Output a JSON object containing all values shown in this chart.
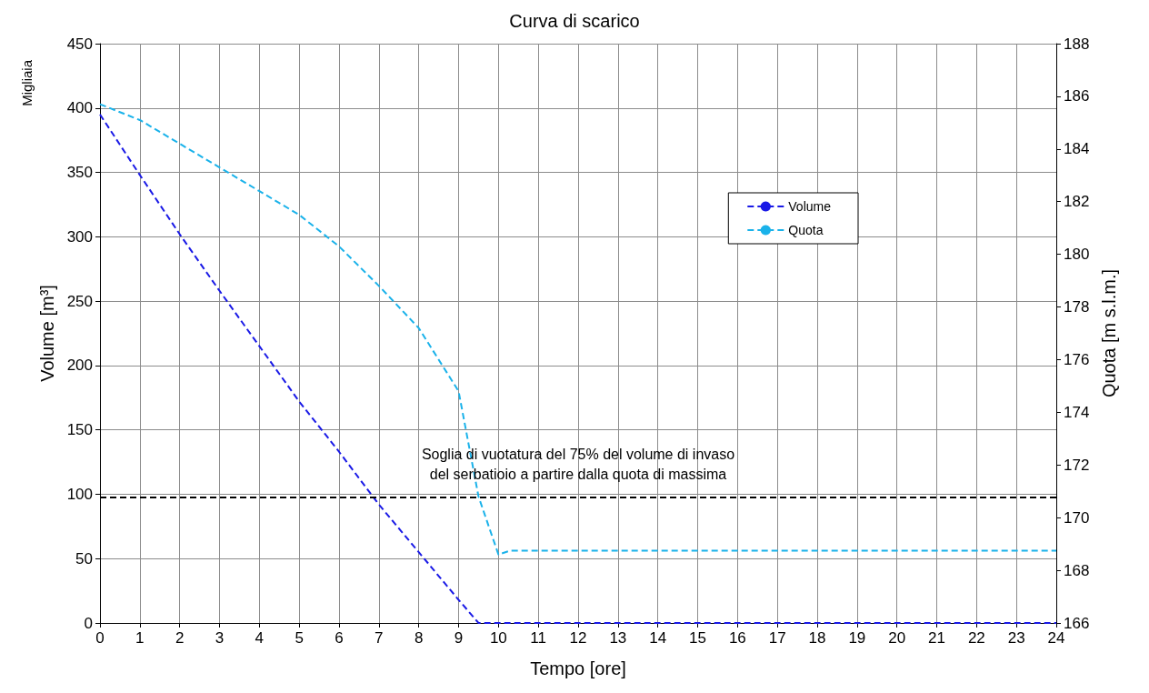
{
  "chart_data": {
    "type": "line",
    "title": "Curva di scarico",
    "xlabel": "Tempo [ore]",
    "ylabel": "Volume [m³]",
    "y2label": "Quota [m s.l.m.]",
    "annotations": [
      "Migliaia"
    ],
    "x": [
      0,
      1,
      2,
      3,
      4,
      5,
      6,
      7,
      8,
      9,
      9.5,
      10,
      10.3,
      11,
      12,
      13,
      14,
      15,
      16,
      17,
      18,
      19,
      20,
      21,
      22,
      23,
      24
    ],
    "series": [
      {
        "name": "Volume",
        "color": "#1a1ae6",
        "line_style": "dashed",
        "values": [
          395,
          348,
          302,
          258,
          215,
          172,
          133,
          92,
          55,
          18,
          0,
          0,
          0,
          0,
          0,
          0,
          0,
          0,
          0,
          0,
          0,
          0,
          0,
          0,
          0,
          0,
          0
        ]
      },
      {
        "name": "Quota",
        "color": "#1ab2ea",
        "line_style": "dashed",
        "axis": "y2",
        "x": [
          0,
          1,
          2,
          3,
          4,
          5,
          6,
          7,
          8,
          8.5,
          9,
          9.5,
          10,
          10.3,
          11,
          12,
          13,
          14,
          15,
          16,
          17,
          18,
          19,
          20,
          21,
          22,
          23,
          24
        ],
        "values": [
          185.7,
          185.1,
          184.2,
          183.3,
          182.4,
          181.5,
          180.3,
          178.8,
          177.2,
          176,
          174.8,
          170.8,
          168.6,
          168.75,
          168.75,
          168.75,
          168.75,
          168.75,
          168.75,
          168.75,
          168.75,
          168.75,
          168.75,
          168.75,
          168.75,
          168.75,
          168.75,
          168.75
        ]
      }
    ],
    "ref_lines": [
      {
        "axis": "y",
        "value": 98,
        "label": "Soglia di vuotatura del 75% del volume di invaso\ndel serbatioio a partire dalla quota di massima",
        "color": "#000000",
        "line_style": "dashed"
      }
    ],
    "xlim": [
      0,
      24
    ],
    "xticks": [
      0,
      1,
      2,
      3,
      4,
      5,
      6,
      7,
      8,
      9,
      10,
      11,
      12,
      13,
      14,
      15,
      16,
      17,
      18,
      19,
      20,
      21,
      22,
      23,
      24
    ],
    "ylim": [
      0,
      450
    ],
    "yticks": [
      0,
      50,
      100,
      150,
      200,
      250,
      300,
      350,
      400,
      450
    ],
    "y2lim": [
      166,
      188
    ],
    "y2ticks": [
      166,
      168,
      170,
      172,
      174,
      176,
      178,
      180,
      182,
      184,
      186,
      188
    ],
    "grid": true,
    "legend": "top right",
    "marker": "none"
  }
}
